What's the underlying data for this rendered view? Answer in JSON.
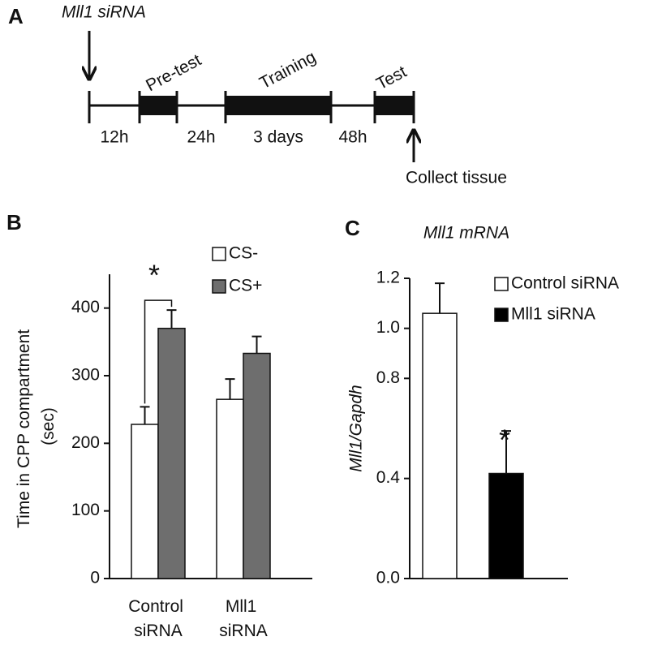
{
  "timeline": {
    "panel_label": "A",
    "injection": "Mll1 siRNA",
    "collect": "Collect tissue",
    "phases": [
      "Pre-test",
      "Training",
      "Test"
    ],
    "intervals": [
      "12h",
      "24h",
      "3 days",
      "48h"
    ]
  },
  "chart_data": [
    {
      "type": "bar",
      "panel_label": "B",
      "ylabel": "Time in CPP compartment (sec)",
      "categories": [
        "Control siRNA",
        "Mll1 siRNA"
      ],
      "series": [
        {
          "name": "CS-",
          "color": "#ffffff",
          "values": [
            228,
            265
          ],
          "errors": [
            26,
            30
          ]
        },
        {
          "name": "CS+",
          "color": "#6e6e6e",
          "values": [
            370,
            333
          ],
          "errors": [
            27,
            25
          ]
        }
      ],
      "ylim": [
        0,
        450
      ],
      "yticks": [
        0,
        100,
        200,
        300,
        400
      ],
      "annotation": "*",
      "legend": "top-right"
    },
    {
      "type": "bar",
      "panel_label": "C",
      "title": "Mll1 mRNA",
      "ylabel": "Mll1/Gapdh",
      "categories": [
        null,
        null
      ],
      "series": [
        {
          "name": "Control siRNA",
          "color": "#ffffff",
          "values": [
            1.06,
            null
          ],
          "errors": [
            0.12,
            null
          ]
        },
        {
          "name": "Mll1 siRNA",
          "color": "#000000",
          "values": [
            null,
            0.42
          ],
          "errors": [
            null,
            0.17
          ]
        }
      ],
      "ylim": [
        0,
        1.2
      ],
      "yticks": [
        {
          "value": 0,
          "label": "0.0"
        },
        {
          "value": 0.4,
          "label": "0.4"
        },
        {
          "value": 0.8,
          "label": "0.8"
        },
        {
          "value": 1,
          "label": "1.0"
        },
        {
          "value": 1.2,
          "label": "1.2"
        }
      ],
      "annotation": "*",
      "legend": "top-right"
    }
  ]
}
